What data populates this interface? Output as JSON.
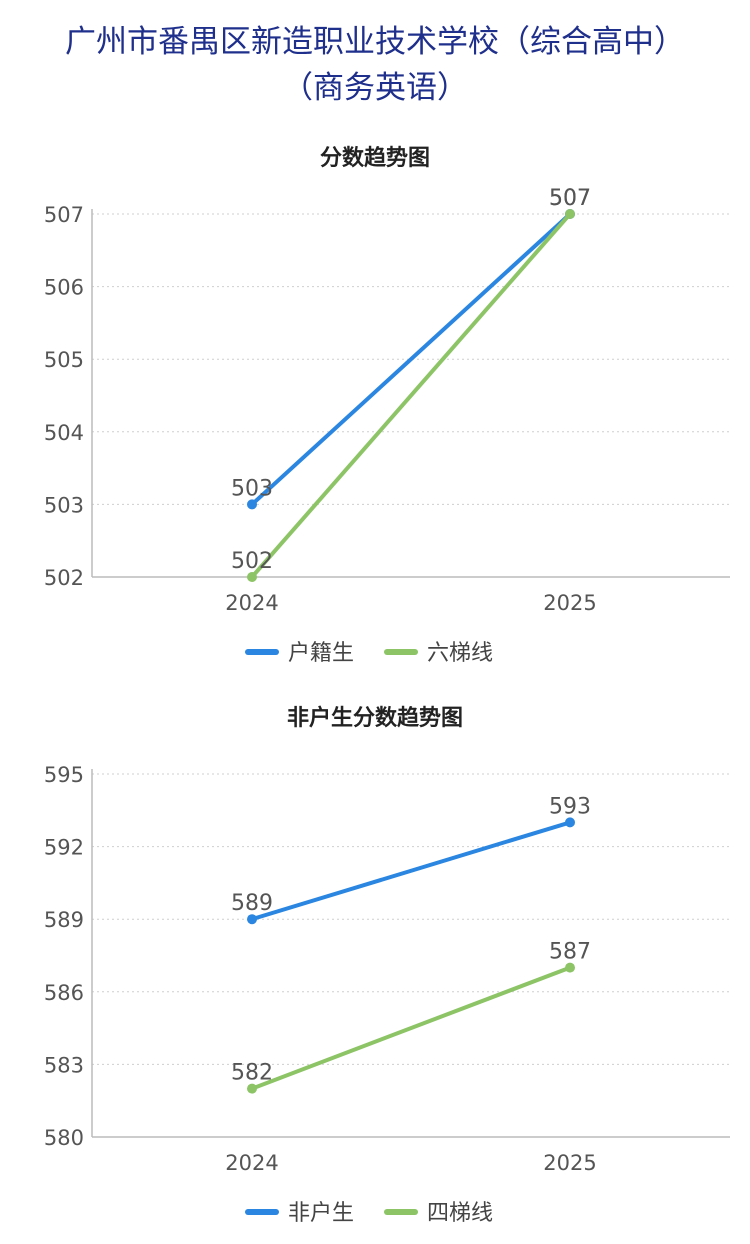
{
  "page": {
    "title_line1": "广州市番禺区新造职业技术学校（综合高中）",
    "title_line2": "（商务英语）"
  },
  "colors": {
    "blue": "#2a86e0",
    "green": "#8cc466",
    "title": "#1f2f8c"
  },
  "chart_data": [
    {
      "type": "line",
      "title": "分数趋势图",
      "categories": [
        "2024",
        "2025"
      ],
      "series": [
        {
          "name": "户籍生",
          "values": [
            503,
            507
          ],
          "color": "#2a86e0"
        },
        {
          "name": "六梯线",
          "values": [
            502,
            507
          ],
          "color": "#8cc466"
        }
      ],
      "ylim": [
        502,
        507
      ],
      "yticks": [
        502,
        503,
        504,
        505,
        506,
        507
      ],
      "grid": true,
      "legend": "bottom"
    },
    {
      "type": "line",
      "title": "非户生分数趋势图",
      "categories": [
        "2024",
        "2025"
      ],
      "series": [
        {
          "name": "非户生",
          "values": [
            589,
            593
          ],
          "color": "#2a86e0"
        },
        {
          "name": "四梯线",
          "values": [
            582,
            587
          ],
          "color": "#8cc466"
        }
      ],
      "ylim": [
        580,
        595
      ],
      "yticks": [
        580,
        583,
        586,
        589,
        592,
        595
      ],
      "grid": true,
      "legend": "bottom"
    }
  ]
}
